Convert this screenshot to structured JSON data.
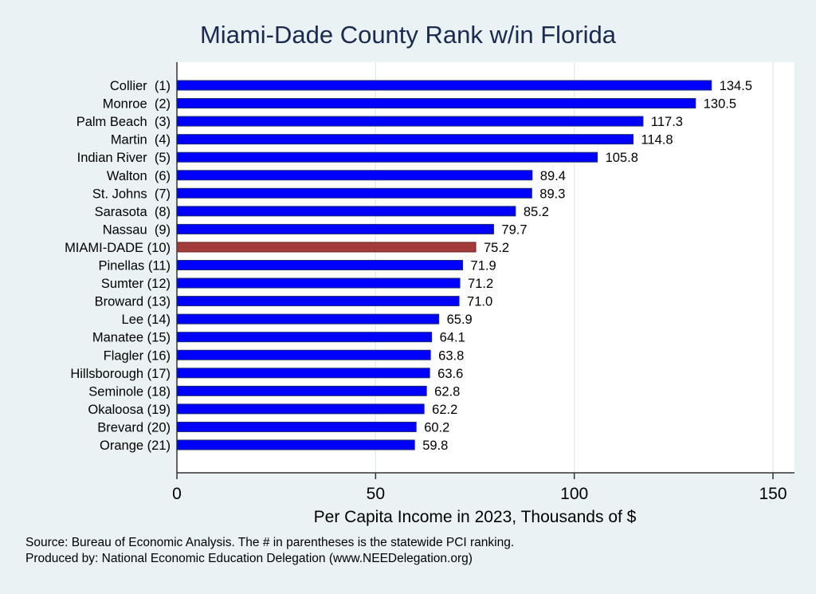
{
  "chart_data": {
    "type": "bar",
    "orientation": "horizontal",
    "title": "Miami-Dade County Rank w/in Florida",
    "xlabel": "Per Capita Income in 2023, Thousands of $",
    "ylabel": "",
    "xlim": [
      0,
      150
    ],
    "xticks": [
      0,
      50,
      100,
      150
    ],
    "grid": true,
    "categories": [
      "Collier  (1)",
      "Monroe  (2)",
      "Palm Beach  (3)",
      "Martin  (4)",
      "Indian River  (5)",
      "Walton  (6)",
      "St. Johns  (7)",
      "Sarasota  (8)",
      "Nassau  (9)",
      "MIAMI-DADE (10)",
      "Pinellas (11)",
      "Sumter (12)",
      "Broward (13)",
      "Lee (14)",
      "Manatee (15)",
      "Flagler (16)",
      "Hillsborough (17)",
      "Seminole (18)",
      "Okaloosa (19)",
      "Brevard (20)",
      "Orange (21)"
    ],
    "values": [
      134.5,
      130.5,
      117.3,
      114.8,
      105.8,
      89.4,
      89.3,
      85.2,
      79.7,
      75.2,
      71.9,
      71.2,
      71.0,
      65.9,
      64.1,
      63.8,
      63.6,
      62.8,
      62.2,
      60.2,
      59.8
    ],
    "value_labels": [
      "134.5",
      "130.5",
      "117.3",
      "114.8",
      "105.8",
      "89.4",
      "89.3",
      "85.2",
      "79.7",
      "75.2",
      "71.9",
      "71.2",
      "71.0",
      "65.9",
      "64.1",
      "63.8",
      "63.6",
      "62.8",
      "62.2",
      "60.2",
      "59.8"
    ],
    "highlight_index": 9,
    "colors": {
      "bar": "#0000ff",
      "bar_border": "#1a2a6c",
      "highlight": "#a33b3b",
      "background": "#eaf2f3",
      "plot": "#ffffff",
      "title": "#1a2a50"
    }
  },
  "notes": {
    "source": "Source: Bureau of Economic Analysis. The # in parentheses is the statewide PCI ranking.",
    "produced_by": "Produced by: National Economic Education Delegation (www.NEEDelegation.org)"
  }
}
